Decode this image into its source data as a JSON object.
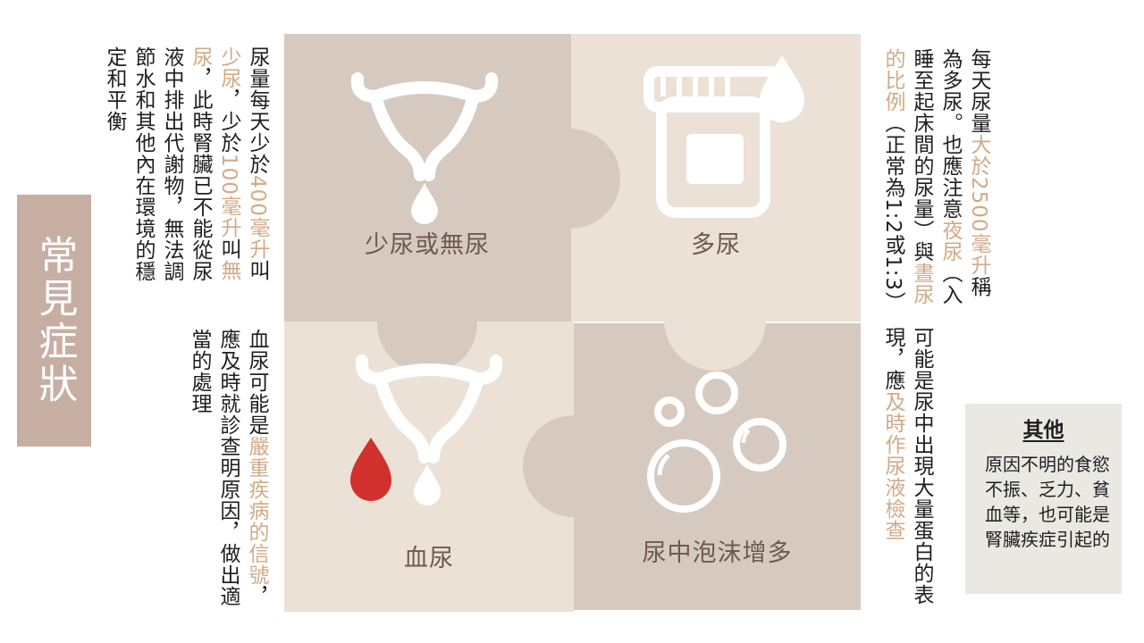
{
  "title": "常見症狀",
  "tiles": {
    "oliguria": {
      "label": "少尿或無尿",
      "icon": "bladder-drop-icon"
    },
    "polyuria": {
      "label": "多尿",
      "icon": "urine-container-drop-icon"
    },
    "hematuria": {
      "label": "血尿",
      "icon": "bladder-blood-drop-icon"
    },
    "foam": {
      "label": "尿中泡沫增多",
      "icon": "bubbles-icon"
    }
  },
  "oliguria_text": {
    "p1": "尿量每天少於",
    "h1": "400毫升",
    "p2": "叫",
    "h2": "少尿",
    "p3": "，少於",
    "h3": "100毫升",
    "p4": "叫",
    "h4": "無尿",
    "p5": "，此時腎臟已不能從尿液中排出代謝物，無法調節水和其他內在環境的穩定和平衡"
  },
  "polyuria_text": {
    "p1": "每天尿量",
    "h1": "大於2500毫升",
    "p2": "稱為多尿。也應注意",
    "h2": "夜尿",
    "p3": "（入睡至起床間的尿量）與",
    "h3": "晝尿的比例",
    "p4": "（正常為1:2或1:3）"
  },
  "hematuria_text": {
    "p1": "血尿可能是",
    "h1": "嚴重疾病的信號",
    "p2": "，應及時就診查明原因，做出適當的處理"
  },
  "foam_text": {
    "p1": "可能是尿中出現大量蛋白的表現，應",
    "h1": "及時作尿液檢查"
  },
  "other": {
    "title": "其他",
    "body": "原因不明的食慾不振、乏力、貧血等，也可能是腎臟疾症引起的"
  },
  "colors": {
    "dark_tile": "#d6cac0",
    "light_tile": "#ece1d7",
    "highlight": "#d2aa86",
    "title_bg": "#c7aea3",
    "blood": "#d0312d"
  }
}
